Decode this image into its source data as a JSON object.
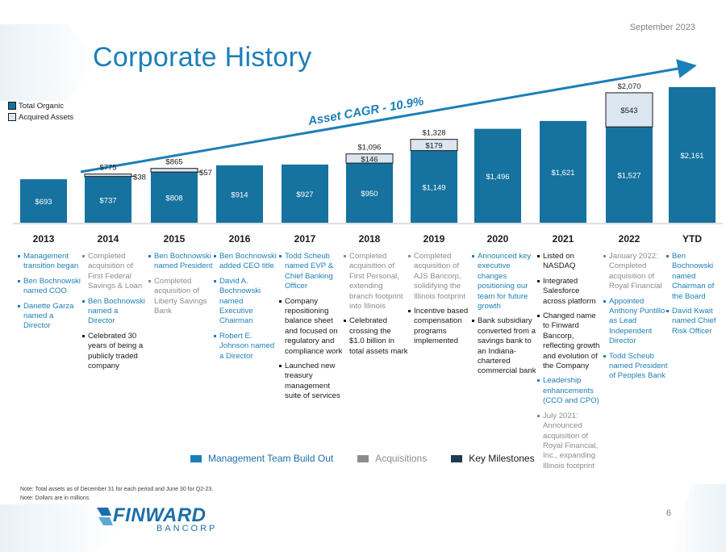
{
  "date": "September 2023",
  "title": "Corporate History",
  "page_number": "6",
  "logo": {
    "name": "FINWARD",
    "sub": "BANCORP"
  },
  "colors": {
    "organic": "#16729f",
    "acquired": "#dce6f0",
    "management": "#1b7fb8",
    "acquisitions": "#8c8c8c",
    "milestones": "#1a1a1a",
    "title": "#1b7fb8"
  },
  "chart_data": {
    "type": "bar",
    "stacked": true,
    "title": "",
    "cagr_label": "Asset CAGR - 10.9%",
    "categories": [
      "2013",
      "2014",
      "2015",
      "2016",
      "2017",
      "2018",
      "2019",
      "2020",
      "2021",
      "2022",
      "YTD"
    ],
    "series": [
      {
        "name": "Total Organic",
        "values": [
          693,
          737,
          808,
          914,
          927,
          950,
          1149,
          1496,
          1621,
          1527,
          2161
        ],
        "labels": [
          "$693",
          "$737",
          "$808",
          "$914",
          "$927",
          "$950",
          "$1,149",
          "$1,496",
          "$1,621",
          "$1,527",
          "$2,161"
        ]
      },
      {
        "name": "Acquired Assets",
        "values": [
          0,
          38,
          57,
          0,
          0,
          146,
          179,
          0,
          0,
          543,
          0
        ],
        "labels": [
          "",
          "$38",
          "$57",
          "",
          "",
          "$146",
          "$179",
          "",
          "",
          "$543",
          ""
        ]
      }
    ],
    "totals": [
      "",
      "$775",
      "$865",
      "",
      "",
      "$1,096",
      "$1,328",
      "",
      "",
      "$2,070",
      ""
    ],
    "xlabel": "",
    "ylabel": "",
    "ylim": [
      0,
      2300
    ],
    "legend_position": "top-left"
  },
  "timeline": [
    {
      "year": "2013",
      "items": [
        {
          "type": "mgmt",
          "text": "Management transition began"
        },
        {
          "type": "mgmt",
          "text": "Ben Bochnowski named COO"
        },
        {
          "type": "mgmt",
          "text": "Danette Garza named a Director"
        }
      ]
    },
    {
      "year": "2014",
      "items": [
        {
          "type": "acq",
          "text": "Completed acquisition of First Federal Savings & Loan"
        },
        {
          "type": "mgmt",
          "text": "Ben Bochnowski named a Director"
        },
        {
          "type": "key",
          "text": "Celebrated 30 years of being a publicly traded company"
        }
      ]
    },
    {
      "year": "2015",
      "items": [
        {
          "type": "mgmt",
          "text": "Ben Bochnowski named President"
        },
        {
          "type": "acq",
          "text": "Completed acquisition of Liberty Savings Bank"
        }
      ]
    },
    {
      "year": "2016",
      "items": [
        {
          "type": "mgmt",
          "text": "Ben Bochnowski added CEO title"
        },
        {
          "type": "mgmt",
          "text": "David A. Bochnowski named Executive Chairman"
        },
        {
          "type": "mgmt",
          "text": "Robert E. Johnson named a Director"
        }
      ]
    },
    {
      "year": "2017",
      "items": [
        {
          "type": "mgmt",
          "text": "Todd Scheub named EVP & Chief Banking Officer"
        },
        {
          "type": "key",
          "text": "Company repositioning balance sheet and focused on regulatory and compliance work"
        },
        {
          "type": "key",
          "text": "Launched new treasury management suite of services"
        }
      ]
    },
    {
      "year": "2018",
      "items": [
        {
          "type": "acq",
          "text": "Completed acquisition of First Personal, extending branch footprint into Illinois"
        },
        {
          "type": "key",
          "text": "Celebrated crossing the $1.0 billion in total assets mark"
        }
      ]
    },
    {
      "year": "2019",
      "items": [
        {
          "type": "acq",
          "text": "Completed acquisition of AJS Bancorp, solidifying the Illinois footprint"
        },
        {
          "type": "key",
          "text": "Incentive based compensation programs implemented"
        }
      ]
    },
    {
      "year": "2020",
      "items": [
        {
          "type": "mgmt",
          "text": "Announced key executive changes positioning our team for future growth"
        },
        {
          "type": "key",
          "text": "Bank subsidiary converted from a savings bank to an Indiana-chartered commercial bank"
        }
      ]
    },
    {
      "year": "2021",
      "items": [
        {
          "type": "key",
          "text": "Listed on NASDAQ"
        },
        {
          "type": "key",
          "text": "Integrated Salesforce across platform"
        },
        {
          "type": "key",
          "text": "Changed name to Finward Bancorp, reflecting growth and evolution of the Company"
        },
        {
          "type": "mgmt",
          "text": "Leadership enhancements (CCO and CPO)"
        },
        {
          "type": "acq",
          "text": "July 2021: Announced acquisition of Royal Financial, Inc., expanding Illinois footprint"
        }
      ]
    },
    {
      "year": "2022",
      "items": [
        {
          "type": "acq",
          "text": "January 2022: Completed acquisition of Royal Financial"
        },
        {
          "type": "mgmt",
          "text": "Appointed Anthony Puntillo as Lead Independent Director"
        },
        {
          "type": "mgmt",
          "text": "Todd Scheub named President of Peoples Bank"
        }
      ]
    },
    {
      "year": "YTD",
      "items": [
        {
          "type": "mgmt",
          "text": "Ben Bochnowski named Chairman of the Board"
        },
        {
          "type": "mgmt",
          "text": "David Kwait named Chief Risk Officer"
        }
      ]
    }
  ],
  "legend_bottom": [
    {
      "label": "Management Team Build Out",
      "color": "#1b7fb8",
      "text_color": "#1b6fa8"
    },
    {
      "label": "Acquisitions",
      "color": "#8c8c8c",
      "text_color": "#8c8c8c"
    },
    {
      "label": "Key Milestones",
      "color": "#1f3a4d",
      "text_color": "#1a1a1a"
    }
  ],
  "notes": [
    "Note: Total assets as of December 31 for each period and June 30 for Q2-23.",
    "Note: Dollars are in millions"
  ]
}
